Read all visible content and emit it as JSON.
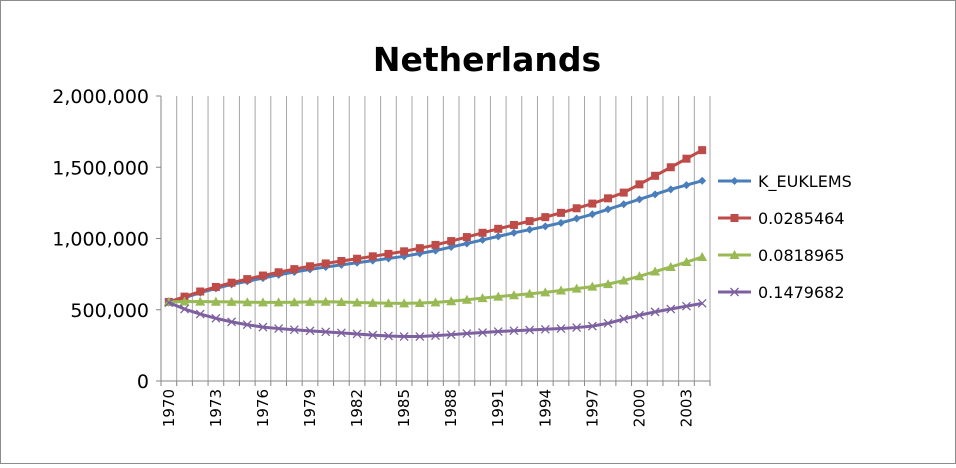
{
  "chart_data": {
    "type": "line",
    "title": "Netherlands",
    "xlabel": "",
    "ylabel": "",
    "ylim": [
      0,
      2000000
    ],
    "yticks": [
      0,
      500000,
      1000000,
      1500000,
      2000000
    ],
    "ytick_labels": [
      "0",
      "500,000",
      "1,000,000",
      "1,500,000",
      "2,000,000"
    ],
    "x": [
      1970,
      1971,
      1972,
      1973,
      1974,
      1975,
      1976,
      1977,
      1978,
      1979,
      1980,
      1981,
      1982,
      1983,
      1984,
      1985,
      1986,
      1987,
      1988,
      1989,
      1990,
      1991,
      1992,
      1993,
      1994,
      1995,
      1996,
      1997,
      1998,
      1999,
      2000,
      2001,
      2002,
      2003,
      2004
    ],
    "xtick_labels": [
      "1970",
      "1973",
      "1976",
      "1979",
      "1982",
      "1985",
      "1988",
      "1991",
      "1994",
      "1997",
      "2000",
      "2003"
    ],
    "grid": "vertical",
    "legend_position": "right",
    "series": [
      {
        "name": "K_EUKLEMS",
        "color": "#4a7ebb",
        "marker": "diamond",
        "values": [
          550000,
          585000,
          620000,
          650000,
          678000,
          700000,
          722000,
          745000,
          765000,
          783000,
          800000,
          815000,
          830000,
          845000,
          860000,
          875000,
          895000,
          915000,
          940000,
          965000,
          990000,
          1015000,
          1040000,
          1062000,
          1085000,
          1110000,
          1140000,
          1170000,
          1205000,
          1240000,
          1275000,
          1310000,
          1345000,
          1375000,
          1405000
        ]
      },
      {
        "name": "0.0285464",
        "color": "#be4b48",
        "marker": "square",
        "values": [
          555000,
          592000,
          628000,
          660000,
          690000,
          715000,
          740000,
          763000,
          785000,
          805000,
          825000,
          842000,
          858000,
          875000,
          892000,
          910000,
          932000,
          955000,
          982000,
          1010000,
          1040000,
          1068000,
          1095000,
          1122000,
          1150000,
          1180000,
          1212000,
          1245000,
          1282000,
          1322000,
          1380000,
          1440000,
          1500000,
          1560000,
          1620000
        ]
      },
      {
        "name": "0.0818965",
        "color": "#98b954",
        "marker": "triangle",
        "values": [
          555000,
          558000,
          557000,
          556000,
          555000,
          553000,
          552000,
          552000,
          553000,
          555000,
          556000,
          554000,
          551000,
          548000,
          546000,
          545000,
          547000,
          552000,
          560000,
          570000,
          582000,
          592000,
          602000,
          612000,
          622000,
          635000,
          648000,
          662000,
          680000,
          705000,
          735000,
          768000,
          800000,
          835000,
          870000
        ]
      },
      {
        "name": "0.1479682",
        "color": "#7d60a0",
        "marker": "x",
        "values": [
          550000,
          505000,
          470000,
          440000,
          415000,
          395000,
          378000,
          368000,
          360000,
          352000,
          345000,
          338000,
          330000,
          322000,
          316000,
          312000,
          312000,
          318000,
          325000,
          333000,
          340000,
          347000,
          353000,
          358000,
          363000,
          368000,
          375000,
          385000,
          405000,
          435000,
          462000,
          485000,
          505000,
          525000,
          545000
        ]
      }
    ]
  }
}
